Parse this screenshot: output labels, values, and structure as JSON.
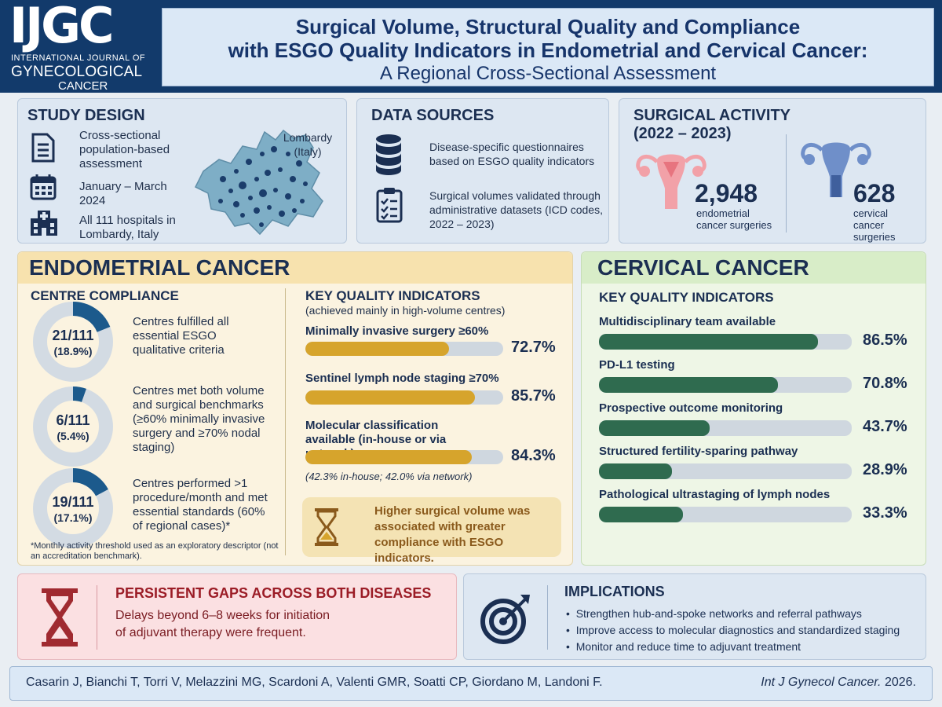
{
  "header": {
    "logo": "IJGC",
    "logo_sub1": "INTERNATIONAL JOURNAL OF",
    "logo_sub2": "GYNECOLOGICAL",
    "logo_sub3": "CANCER",
    "title_line1": "Surgical Volume, Structural Quality and Compliance",
    "title_line2": "with ESGO Quality Indicators in Endometrial and Cervical Cancer:",
    "title_line3": "A Regional Cross-Sectional Assessment"
  },
  "study_design": {
    "title": "STUDY DESIGN",
    "item1": "Cross-sectional population-based assessment",
    "item2": "January – March 2024",
    "item3": "All 111 hospitals in Lombardy, Italy",
    "map_label": "Lombardy (Italy)",
    "icons": [
      "document-icon",
      "calendar-icon",
      "hospital-icon",
      "map-icon"
    ]
  },
  "data_sources": {
    "title": "DATA SOURCES",
    "item1": "Disease-specific questionnaires based on ESGO quality indicators",
    "item2": "Surgical volumes validated through administrative datasets (ICD codes, 2022 – 2023)",
    "icons": [
      "database-icon",
      "clipboard-icon"
    ]
  },
  "surgical_activity": {
    "title_line1": "SURGICAL ACTIVITY",
    "title_line2": "(2022 – 2023)",
    "endometrial_count": "2,948",
    "endometrial_label1": "endometrial",
    "endometrial_label2": "cancer surgeries",
    "cervical_count": "628",
    "cervical_label1": "cervical",
    "cervical_label2": "cancer surgeries",
    "icons": [
      "uterus-pink-icon",
      "uterus-blue-icon"
    ]
  },
  "endometrial": {
    "title": "ENDOMETRIAL CANCER",
    "compliance_title": "CENTRE COMPLIANCE",
    "donuts": [
      {
        "value": "21/111",
        "pct": "(18.9%)",
        "fraction": 0.189,
        "text": "Centres fulfilled all essential ESGO qualitative criteria"
      },
      {
        "value": "6/111",
        "pct": "(5.4%)",
        "fraction": 0.054,
        "text": "Centres met both volume and surgical benchmarks (≥60% minimally invasive surgery and ≥70% nodal staging)"
      },
      {
        "value": "19/111",
        "pct": "(17.1%)",
        "fraction": 0.171,
        "text": "Centres performed >1 procedure/month and met essential standards (60% of regional cases)*"
      }
    ],
    "footnote": "*Monthly activity threshold used as an exploratory descriptor (not an accreditation benchmark).",
    "kqi_title": "KEY QUALITY INDICATORS",
    "kqi_subtitle": "(achieved mainly in high-volume centres)",
    "indicators": [
      {
        "label": "Minimally invasive surgery ≥60%",
        "pct": "72.7%",
        "value": 72.7
      },
      {
        "label": "Sentinel lymph node staging ≥70%",
        "pct": "85.7%",
        "value": 85.7
      },
      {
        "label": "Molecular classification available (in-house or via network)",
        "pct": "84.3%",
        "value": 84.3
      }
    ],
    "molecular_note": "(42.3% in-house; 42.0% via network)",
    "callout": "Higher surgical volume was associated with greater compliance with ESGO indicators.",
    "colors": {
      "donut": "#1c5a8c",
      "donut_track": "#d3dbe3",
      "bar": "#d6a42c"
    }
  },
  "cervical": {
    "title": "CERVICAL CANCER",
    "kqi_title": "KEY QUALITY INDICATORS",
    "indicators": [
      {
        "label": "Multidisciplinary team available",
        "pct": "86.5%",
        "value": 86.5
      },
      {
        "label": "PD-L1 testing",
        "pct": "70.8%",
        "value": 70.8
      },
      {
        "label": "Prospective outcome monitoring",
        "pct": "43.7%",
        "value": 43.7
      },
      {
        "label": "Structured fertility-sparing pathway",
        "pct": "28.9%",
        "value": 28.9
      },
      {
        "label": "Pathological ultrastaging of lymph nodes",
        "pct": "33.3%",
        "value": 33.3
      }
    ],
    "colors": {
      "bar": "#2f6b4f"
    }
  },
  "gaps": {
    "title": "PERSISTENT GAPS ACROSS BOTH DISEASES",
    "text_line1": "Delays beyond 6–8 weeks for initiation",
    "text_line2": "of adjuvant therapy were frequent.",
    "icon": "hourglass-icon"
  },
  "implications": {
    "title": "IMPLICATIONS",
    "items": [
      "Strengthen hub-and-spoke networks and referral pathways",
      "Improve access to molecular diagnostics and standardized staging",
      "Monitor and reduce time to adjuvant treatment"
    ],
    "icon": "target-icon"
  },
  "footer": {
    "authors": "Casarin J, Bianchi T, Torri V, Melazzini MG, Scardoni A, Valenti GMR, Soatti CP, Giordano M, Landoni F.",
    "journal": "Int J Gynecol Cancer.",
    "year": "2026."
  }
}
